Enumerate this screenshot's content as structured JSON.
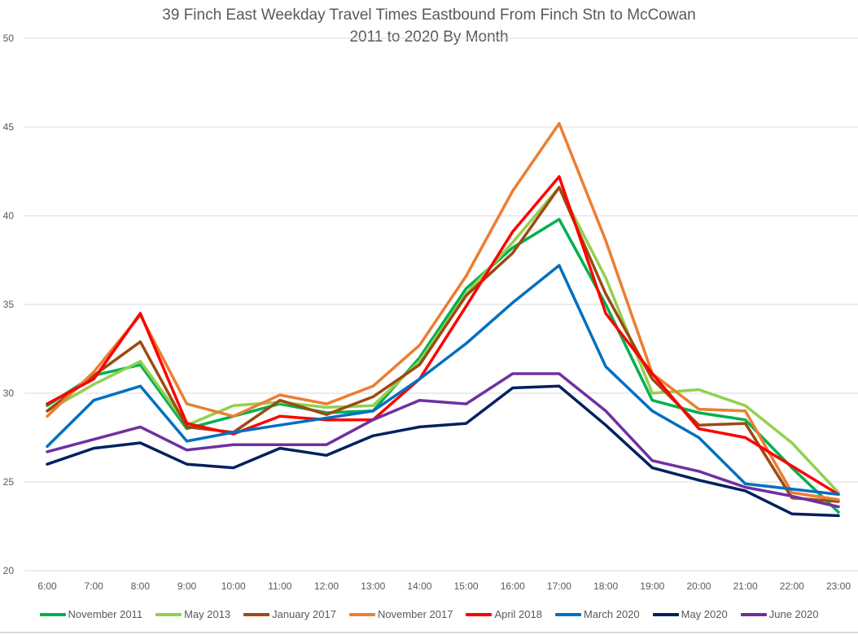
{
  "chart_data": {
    "type": "line",
    "title": "39 Finch East Weekday Travel Times Eastbound From Finch Stn to McCowan",
    "subtitle": "2011 to 2020 By Month",
    "xlabel": "",
    "ylabel": "",
    "ylim": [
      20,
      50
    ],
    "yticks": [
      20,
      25,
      30,
      35,
      40,
      45,
      50
    ],
    "grid": true,
    "legend_position": "bottom",
    "categories": [
      "6:00",
      "7:00",
      "8:00",
      "9:00",
      "10:00",
      "11:00",
      "12:00",
      "13:00",
      "14:00",
      "15:00",
      "16:00",
      "17:00",
      "18:00",
      "19:00",
      "20:00",
      "21:00",
      "22:00",
      "23:00"
    ],
    "series": [
      {
        "name": "November 2011",
        "color": "#00B050",
        "values": [
          29.3,
          31.0,
          31.6,
          28.0,
          28.7,
          29.4,
          28.9,
          29.0,
          32.0,
          35.9,
          38.2,
          39.8,
          35.0,
          29.6,
          28.9,
          28.5,
          25.8,
          23.3
        ]
      },
      {
        "name": "May 2013",
        "color": "#92D050",
        "values": [
          29.0,
          30.5,
          31.8,
          28.2,
          29.3,
          29.5,
          29.2,
          29.3,
          31.8,
          35.6,
          38.5,
          41.6,
          36.5,
          30.0,
          30.2,
          29.3,
          27.2,
          24.4
        ]
      },
      {
        "name": "January 2017",
        "color": "#9C4A12",
        "values": [
          29.0,
          31.0,
          32.9,
          28.1,
          27.8,
          29.6,
          28.8,
          29.8,
          31.6,
          35.5,
          37.9,
          41.6,
          35.6,
          30.8,
          28.2,
          28.3,
          24.1,
          23.9
        ]
      },
      {
        "name": "November 2017",
        "color": "#ED7D31",
        "values": [
          28.7,
          31.2,
          34.4,
          29.4,
          28.7,
          29.9,
          29.4,
          30.4,
          32.7,
          36.6,
          41.4,
          45.2,
          38.6,
          31.1,
          29.1,
          29.0,
          24.4,
          24.0
        ]
      },
      {
        "name": "April 2018",
        "color": "#FF0000",
        "values": [
          29.4,
          30.8,
          34.5,
          28.3,
          27.7,
          28.7,
          28.5,
          28.5,
          30.8,
          34.9,
          39.1,
          42.2,
          34.5,
          31.1,
          28.0,
          27.5,
          25.9,
          24.3
        ]
      },
      {
        "name": "March 2020",
        "color": "#0070C0",
        "values": [
          27.0,
          29.6,
          30.4,
          27.3,
          27.8,
          28.2,
          28.6,
          29.0,
          30.8,
          32.8,
          35.1,
          37.2,
          31.5,
          29.0,
          27.5,
          24.9,
          24.6,
          24.3
        ]
      },
      {
        "name": "May 2020",
        "color": "#002060",
        "values": [
          26.0,
          26.9,
          27.2,
          26.0,
          25.8,
          26.9,
          26.5,
          27.6,
          28.1,
          28.3,
          30.3,
          30.4,
          28.2,
          25.8,
          25.1,
          24.5,
          23.2,
          23.1
        ]
      },
      {
        "name": "June 2020",
        "color": "#7030A0",
        "values": [
          26.7,
          27.4,
          28.1,
          26.8,
          27.1,
          27.1,
          27.1,
          28.5,
          29.6,
          29.4,
          31.1,
          31.1,
          29.0,
          26.2,
          25.6,
          24.7,
          24.2,
          23.6
        ]
      }
    ]
  }
}
